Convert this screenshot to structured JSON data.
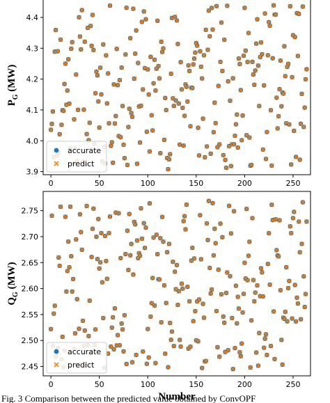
{
  "figure": {
    "caption": "Fig. 3   Comparison between the predicted value obtained by ConvOPF"
  },
  "chart_data": [
    {
      "type": "scatter",
      "title": "",
      "xlabel": "",
      "ylabel": {
        "main": "P",
        "sub": "G",
        "rest": "(MW)"
      },
      "xlim": [
        -8,
        268
      ],
      "ylim": [
        3.89,
        4.47
      ],
      "xticks": [
        0,
        50,
        100,
        150,
        200,
        250
      ],
      "yticks": [
        3.9,
        4.0,
        4.1,
        4.2,
        4.3,
        4.4
      ],
      "ytick_labels": [
        "3.9",
        "4.0",
        "4.1",
        "4.2",
        "4.3",
        "4.4"
      ],
      "legend": {
        "position": "lower-left",
        "entries": [
          "accurate",
          "predict"
        ]
      },
      "series_colors": {
        "accurate": "#1f77b4",
        "predict": "#ff7f0e"
      },
      "seed": 11,
      "n": 265,
      "series": [
        {
          "name": "accurate",
          "marker": "circle"
        },
        {
          "name": "predict",
          "marker": "x",
          "values_equal_to": "accurate"
        }
      ]
    },
    {
      "type": "scatter",
      "title": "",
      "xlabel": "Number",
      "ylabel": {
        "main": "Q",
        "sub": "G",
        "rest": "(MW)"
      },
      "xlim": [
        -8,
        268
      ],
      "ylim": [
        2.432,
        2.787
      ],
      "xticks": [
        0,
        50,
        100,
        150,
        200,
        250
      ],
      "yticks": [
        2.45,
        2.5,
        2.55,
        2.6,
        2.65,
        2.7,
        2.75
      ],
      "ytick_labels": [
        "2.45",
        "2.50",
        "2.55",
        "2.60",
        "2.65",
        "2.70",
        "2.75"
      ],
      "legend": {
        "position": "lower-left",
        "entries": [
          "accurate",
          "predict"
        ]
      },
      "series_colors": {
        "accurate": "#1f77b4",
        "predict": "#ff7f0e"
      },
      "seed": 11,
      "n": 265,
      "series": [
        {
          "name": "accurate",
          "marker": "circle"
        },
        {
          "name": "predict",
          "marker": "x",
          "values_equal_to": "accurate"
        }
      ]
    }
  ]
}
